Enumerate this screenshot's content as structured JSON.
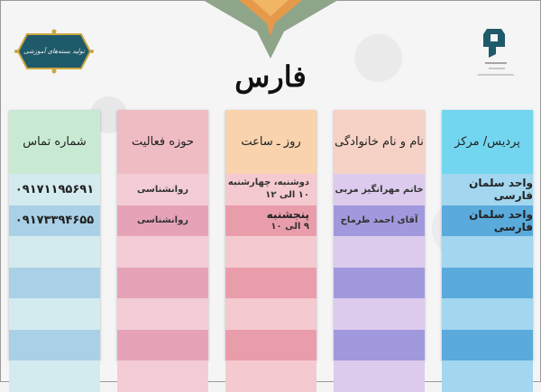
{
  "title": "فارس",
  "badge_text": "تولید بسته‌های آموزشی",
  "logo_text": "دانشگاه فرهنگیان",
  "columns": [
    {
      "header": "شماره تماس",
      "colors": {
        "head": "#c9ead2",
        "a": "#d3ebef",
        "b": "#a9d0e6"
      },
      "rows": [
        "۰۹۱۷۱۱۹۵۶۹۱",
        "۰۹۱۷۳۳۹۴۶۵۵",
        "",
        "",
        "",
        "",
        ""
      ]
    },
    {
      "header": "حوزه فعالیت",
      "colors": {
        "head": "#efbcc4",
        "a": "#f3ccd6",
        "b": "#e6a3b8"
      },
      "rows": [
        "روانشناسی",
        "روانشناسی",
        "",
        "",
        "",
        "",
        ""
      ]
    },
    {
      "header": "روز ـ ساعت",
      "colors": {
        "head": "#f8d3ad",
        "a": "#f4c9cf",
        "b": "#e99dab"
      },
      "rows": [
        [
          "دوشنبه، چهارشنبه",
          "۱۰ الی ۱۲"
        ],
        [
          "پنجشنبه",
          "۹ الی ۱۰"
        ],
        "",
        "",
        "",
        "",
        ""
      ]
    },
    {
      "header": "نام و نام خانوادگی",
      "colors": {
        "head": "#f6d1c6",
        "a": "#dccbec",
        "b": "#a199dd"
      },
      "rows": [
        "خانم مهرانگیز مربی",
        "آقای احمد طرماح",
        "",
        "",
        "",
        "",
        ""
      ]
    },
    {
      "header": "پردیس/ مرکز",
      "colors": {
        "head": "#73d6f0",
        "a": "#a3d6ef",
        "b": "#5aaadc"
      },
      "rows": [
        "واحد سلمان فارسی",
        "واحد سلمان فارسی",
        "",
        "",
        "",
        "",
        ""
      ]
    }
  ]
}
